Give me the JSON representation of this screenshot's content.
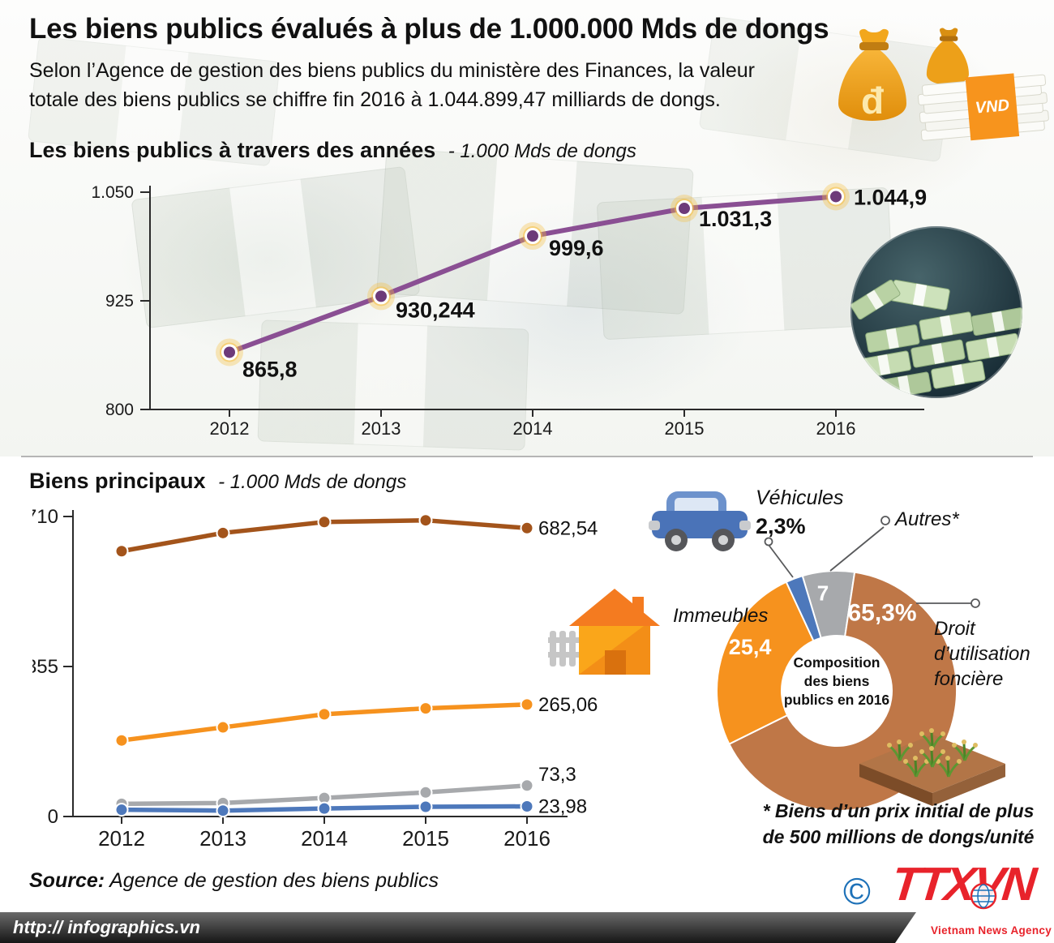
{
  "header": {
    "title": "Les biens publics évalués à plus de 1.000.000 Mds de dongs",
    "subtitle_line1": "Selon l’Agence de gestion des biens publics du ministère des Finances, la valeur",
    "subtitle_line2": "totale des biens publics se chiffre fin 2016 à 1.044.899,47 milliards de dongs.",
    "money_bag_symbol": "đ",
    "vnd_label": "VND"
  },
  "chart_data": [
    {
      "type": "line",
      "title": "Les biens publics à travers des années",
      "unit": "- 1.000 Mds de dongs",
      "x": [
        "2012",
        "2013",
        "2014",
        "2015",
        "2016"
      ],
      "values": [
        865.8,
        930.244,
        999.6,
        1031.3,
        1044.9
      ],
      "point_labels": [
        "865,8",
        "930,244",
        "999,6",
        "1.031,3",
        "1.044,9"
      ],
      "ylim": [
        800,
        1050
      ],
      "yticks": [
        1050,
        925,
        800
      ],
      "ytick_labels": [
        "1.050",
        "925",
        "800"
      ],
      "line_color": "#8a4f93",
      "point_color": "#6d3a79",
      "halo_color": "#f6c044",
      "grid": false,
      "legend": "none"
    },
    {
      "type": "line",
      "title": "Biens principaux",
      "unit": "- 1.000 Mds de dongs",
      "x": [
        "2012",
        "2013",
        "2014",
        "2015",
        "2016"
      ],
      "ylim": [
        0,
        710
      ],
      "yticks": [
        710,
        355,
        0
      ],
      "ytick_labels": [
        "710",
        "355",
        "0"
      ],
      "grid": false,
      "legend": "none",
      "series": [
        {
          "name": "Droit d'utilisation foncière",
          "color": "#a3541b",
          "values": [
            628,
            671,
            697,
            701,
            682.54
          ],
          "end_label": "682,54"
        },
        {
          "name": "Immeubles",
          "color": "#f6921e",
          "values": [
            180,
            211,
            242,
            256,
            265.06
          ],
          "end_label": "265,06"
        },
        {
          "name": "Autres",
          "color": "#a7a9ac",
          "values": [
            30,
            32,
            44,
            57,
            73.3
          ],
          "end_label": "73,3"
        },
        {
          "name": "Véhicules",
          "color": "#4d78bb",
          "values": [
            16,
            14,
            19,
            23,
            23.98
          ],
          "end_label": "23,98"
        }
      ]
    },
    {
      "type": "pie",
      "donut": true,
      "start_angle_deg": -16.6,
      "slices": [
        {
          "name": "Autres",
          "value": 7,
          "inside_label": "7",
          "color": "#a7a9ac"
        },
        {
          "name": "Droit d'utilisation foncière",
          "value": 65.3,
          "inside_label": "65,3%",
          "color": "#bf7747"
        },
        {
          "name": "Immeubles",
          "value": 25.4,
          "inside_label": "25,4",
          "color": "#f6921e"
        },
        {
          "name": "Véhicules",
          "value": 2.3,
          "inside_label": "",
          "color": "#4d78bb"
        }
      ],
      "center_label": "Composition des biens publics en 2016",
      "footnote": "* Biens d’un prix initial de plus de 500 millions de dongs/unité"
    }
  ],
  "annotations": {
    "vehicules_label": "Véhicules",
    "vehicules_pct": "2,3%",
    "immeubles_label": "Immeubles",
    "autres_label": "Autres*",
    "droit_label": "Droit d’utilisation foncière"
  },
  "source": {
    "label": "Source:",
    "text": " Agence de gestion des biens publics"
  },
  "footer": {
    "url": "http:// infographics.vn",
    "copyright": "©",
    "logo": "TTXVN",
    "logo_subtitle": "Vietnam News Agency"
  }
}
